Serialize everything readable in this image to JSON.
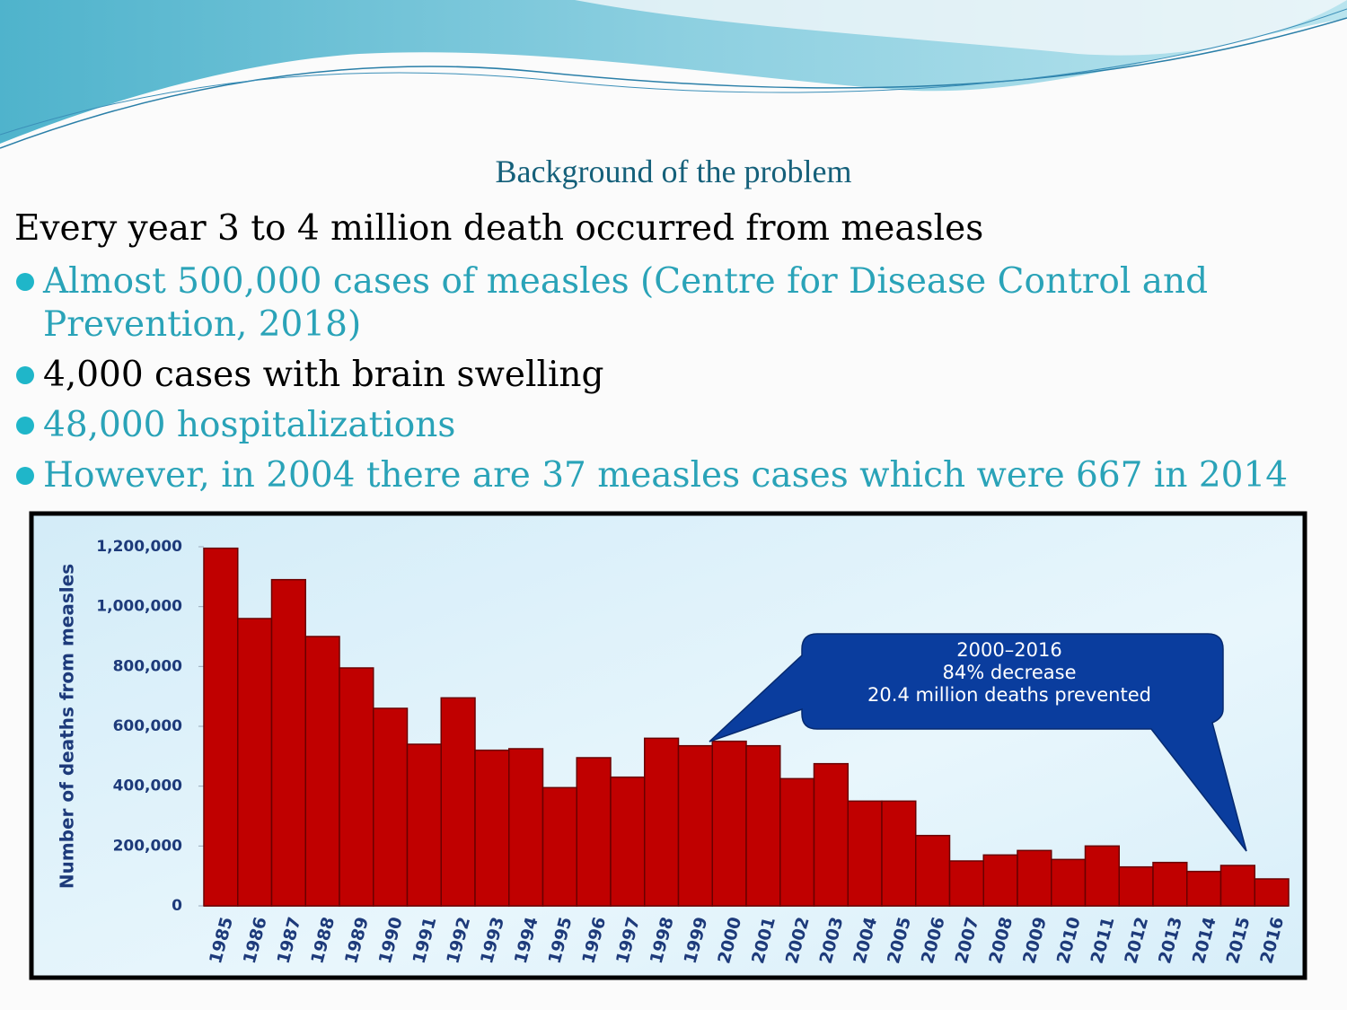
{
  "slide": {
    "title": "Background of the problem",
    "lead": "Every year 3 to 4 million death occurred from measles",
    "bullets": [
      "Almost 500,000 cases of measles (Centre for Disease Control and Prevention, 2018)",
      "4,000 cases with brain swelling",
      "48,000 hospitalizations",
      "However, in 2004 there are 37 measles cases which were 667 in 2014"
    ]
  },
  "chart_data": {
    "type": "bar",
    "y_label": "Number of deaths from measles",
    "categories": [
      "1985",
      "1986",
      "1987",
      "1988",
      "1989",
      "1990",
      "1991",
      "1992",
      "1993",
      "1994",
      "1995",
      "1996",
      "1997",
      "1998",
      "1999",
      "2000",
      "2001",
      "2002",
      "2003",
      "2004",
      "2005",
      "2006",
      "2007",
      "2008",
      "2009",
      "2010",
      "2011",
      "2012",
      "2013",
      "2014",
      "2015",
      "2016"
    ],
    "values": [
      1195000,
      960000,
      1090000,
      900000,
      795000,
      660000,
      540000,
      695000,
      520000,
      525000,
      395000,
      495000,
      430000,
      560000,
      535000,
      550000,
      535000,
      425000,
      475000,
      350000,
      350000,
      235000,
      150000,
      170000,
      185000,
      155000,
      200000,
      130000,
      145000,
      115000,
      135000,
      90000
    ],
    "color": "#c00000",
    "ylim": [
      0,
      1200000
    ],
    "yticks": [
      0,
      {
        "value": 200000,
        "label": "200,000"
      },
      {
        "value": 400000,
        "label": "400,000"
      },
      {
        "value": 600000,
        "label": "600,000"
      },
      {
        "value": 800000,
        "label": "800,000"
      },
      {
        "value": 1000000,
        "label": "1,000,000"
      },
      {
        "value": 1200000,
        "label": "1,200,000"
      }
    ],
    "annotation": [
      "2000–2016",
      "84% decrease",
      "20.4 million deaths prevented"
    ]
  }
}
